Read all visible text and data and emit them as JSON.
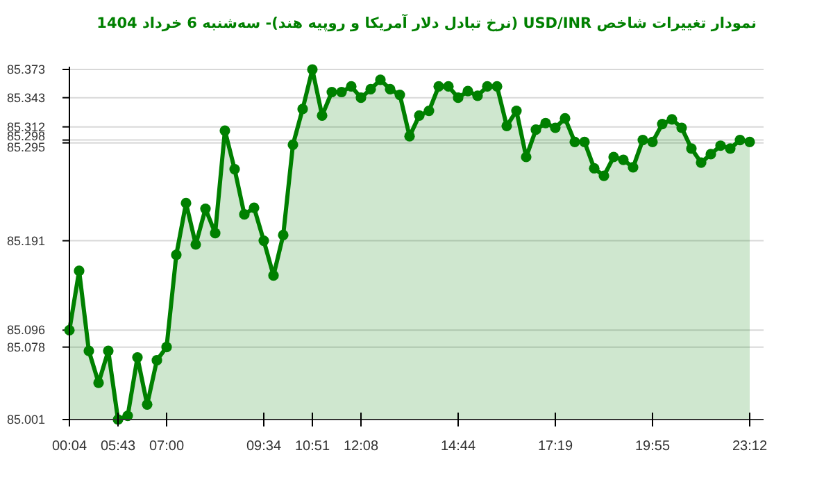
{
  "chart_data": {
    "type": "area",
    "title": "نمودار تغییرات شاخص USD/INR (نرخ تبادل دلار آمریکا و روپیه هند)- سه‌شنبه  6 خرداد 1404",
    "categories": [
      "00:04",
      null,
      null,
      null,
      null,
      "05:43",
      null,
      null,
      null,
      null,
      "07:00",
      null,
      null,
      null,
      null,
      null,
      null,
      null,
      null,
      null,
      "09:34",
      null,
      null,
      null,
      null,
      "10:51",
      null,
      null,
      null,
      null,
      "12:08",
      null,
      null,
      null,
      null,
      null,
      null,
      null,
      null,
      null,
      "14:44",
      null,
      null,
      null,
      null,
      null,
      null,
      null,
      null,
      null,
      "17:19",
      null,
      null,
      null,
      null,
      null,
      null,
      null,
      null,
      null,
      "19:55",
      null,
      null,
      null,
      null,
      null,
      null,
      null,
      null,
      null,
      "23:12"
    ],
    "series": [
      {
        "color": "#008000",
        "values": [
          85.096,
          85.159,
          85.074,
          85.04,
          85.074,
          85.001,
          85.005,
          85.067,
          85.017,
          85.064,
          85.078,
          85.176,
          85.231,
          85.187,
          85.225,
          85.199,
          85.308,
          85.267,
          85.219,
          85.226,
          85.191,
          85.154,
          85.197,
          85.293,
          85.331,
          85.373,
          85.324,
          85.349,
          85.349,
          85.355,
          85.343,
          85.352,
          85.362,
          85.352,
          85.346,
          85.302,
          85.324,
          85.329,
          85.355,
          85.355,
          85.343,
          85.35,
          85.345,
          85.355,
          85.355,
          85.313,
          85.329,
          85.28,
          85.309,
          85.316,
          85.311,
          85.321,
          85.296,
          85.296,
          85.268,
          85.26,
          85.28,
          85.277,
          85.269,
          85.298,
          85.296,
          85.315,
          85.32,
          85.311,
          85.289,
          85.274,
          85.283,
          85.292,
          85.289,
          85.298,
          85.296
        ]
      }
    ],
    "ylim": [
      85.001,
      85.373
    ],
    "yticks": [
      85.001,
      85.078,
      85.096,
      85.191,
      85.295,
      85.298,
      85.312,
      85.343,
      85.373
    ],
    "grid": "y",
    "marker": "circle",
    "line_style": "solid"
  }
}
